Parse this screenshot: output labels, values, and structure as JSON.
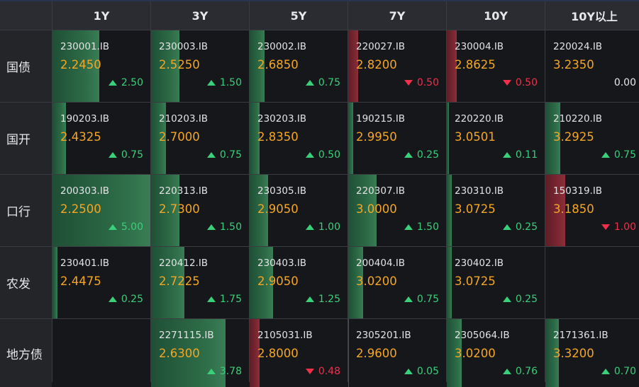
{
  "columns": [
    "1Y",
    "3Y",
    "5Y",
    "7Y",
    "10Y",
    "10Y以上"
  ],
  "rows": [
    {
      "label": "国债",
      "cells": [
        {
          "code": "230001.IB",
          "price": "2.2450",
          "change": "2.50",
          "dir": "up",
          "bar": 0.48
        },
        {
          "code": "230003.IB",
          "price": "2.5250",
          "change": "1.50",
          "dir": "up",
          "bar": 0.29
        },
        {
          "code": "230002.IB",
          "price": "2.6850",
          "change": "0.75",
          "dir": "up",
          "bar": 0.15
        },
        {
          "code": "220027.IB",
          "price": "2.8200",
          "change": "0.50",
          "dir": "down",
          "bar": 0.1
        },
        {
          "code": "230004.IB",
          "price": "2.8625",
          "change": "0.50",
          "dir": "down",
          "bar": 0.1
        },
        {
          "code": "220024.IB",
          "price": "3.2350",
          "change": "0.00",
          "dir": "flat",
          "bar": 0.0
        }
      ]
    },
    {
      "label": "国开",
      "cells": [
        {
          "code": "190203.IB",
          "price": "2.4325",
          "change": "0.75",
          "dir": "up",
          "bar": 0.14
        },
        {
          "code": "210203.IB",
          "price": "2.7000",
          "change": "0.75",
          "dir": "up",
          "bar": 0.15
        },
        {
          "code": "230203.IB",
          "price": "2.8350",
          "change": "0.50",
          "dir": "up",
          "bar": 0.1
        },
        {
          "code": "190215.IB",
          "price": "2.9950",
          "change": "0.25",
          "dir": "up",
          "bar": 0.05
        },
        {
          "code": "220220.IB",
          "price": "3.0501",
          "change": "0.11",
          "dir": "up",
          "bar": 0.02
        },
        {
          "code": "210220.IB",
          "price": "3.2925",
          "change": "0.75",
          "dir": "up",
          "bar": 0.15
        }
      ]
    },
    {
      "label": "口行",
      "cells": [
        {
          "code": "200303.IB",
          "price": "2.2500",
          "change": "5.00",
          "dir": "up",
          "bar": 1.0
        },
        {
          "code": "220313.IB",
          "price": "2.7300",
          "change": "1.50",
          "dir": "up",
          "bar": 0.29
        },
        {
          "code": "230305.IB",
          "price": "2.9050",
          "change": "1.00",
          "dir": "up",
          "bar": 0.19
        },
        {
          "code": "220307.IB",
          "price": "3.0000",
          "change": "1.50",
          "dir": "up",
          "bar": 0.29
        },
        {
          "code": "230310.IB",
          "price": "3.0725",
          "change": "0.25",
          "dir": "up",
          "bar": 0.05
        },
        {
          "code": "150319.IB",
          "price": "3.1850",
          "change": "1.00",
          "dir": "down",
          "bar": 0.2
        }
      ]
    },
    {
      "label": "农发",
      "cells": [
        {
          "code": "230401.IB",
          "price": "2.4475",
          "change": "0.25",
          "dir": "up",
          "bar": 0.05
        },
        {
          "code": "220412.IB",
          "price": "2.7225",
          "change": "1.75",
          "dir": "up",
          "bar": 0.34
        },
        {
          "code": "230403.IB",
          "price": "2.9050",
          "change": "1.25",
          "dir": "up",
          "bar": 0.24
        },
        {
          "code": "200404.IB",
          "price": "3.0200",
          "change": "0.75",
          "dir": "up",
          "bar": 0.15
        },
        {
          "code": "230402.IB",
          "price": "3.0725",
          "change": "0.25",
          "dir": "up",
          "bar": 0.05
        },
        null
      ]
    },
    {
      "label": "地方债",
      "cells": [
        null,
        {
          "code": "2271115.IB",
          "price": "2.6300",
          "change": "3.78",
          "dir": "up",
          "bar": 0.76
        },
        {
          "code": "2105031.IB",
          "price": "2.8000",
          "change": "0.48",
          "dir": "down",
          "bar": 0.1
        },
        {
          "code": "2305201.IB",
          "price": "2.9600",
          "change": "0.05",
          "dir": "up",
          "bar": 0.01
        },
        {
          "code": "2305064.IB",
          "price": "3.0200",
          "change": "0.76",
          "dir": "up",
          "bar": 0.15
        },
        {
          "code": "2171361.IB",
          "price": "3.3200",
          "change": "0.70",
          "dir": "up",
          "bar": 0.14
        }
      ]
    }
  ],
  "colors": {
    "up": "#3ad07a",
    "down": "#f0304a",
    "price": "#f5a623"
  }
}
